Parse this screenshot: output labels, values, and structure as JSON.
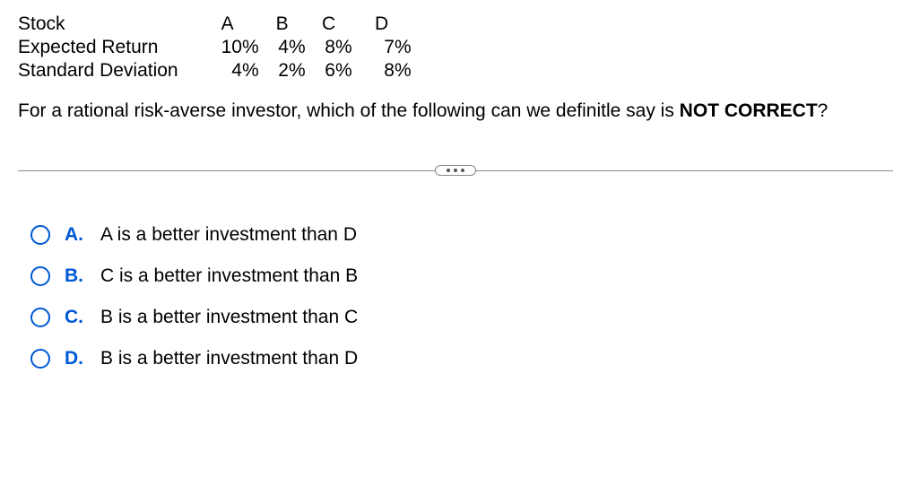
{
  "table": {
    "row_labels": [
      "Stock",
      "Expected Return",
      "Standard Deviation"
    ],
    "columns": [
      "A",
      "B",
      "C",
      "D"
    ],
    "rows": [
      [
        "10%",
        "4%",
        "8%",
        "7%"
      ],
      [
        "4%",
        "2%",
        "6%",
        "8%"
      ]
    ]
  },
  "question": {
    "prefix": "For a rational risk-averse investor, which of the following can we definitle say is ",
    "bold1": "NOT CORRECT",
    "suffix": "?"
  },
  "options": [
    {
      "letter": "A.",
      "text": "A is a better investment than D"
    },
    {
      "letter": "B.",
      "text": "C is a better investment than B"
    },
    {
      "letter": "C.",
      "text": "B is a better investment than C"
    },
    {
      "letter": "D.",
      "text": "B is a better investment than D"
    }
  ],
  "colors": {
    "accent": "#0058d4",
    "text": "#000000",
    "divider": "#888888",
    "background": "#ffffff"
  }
}
